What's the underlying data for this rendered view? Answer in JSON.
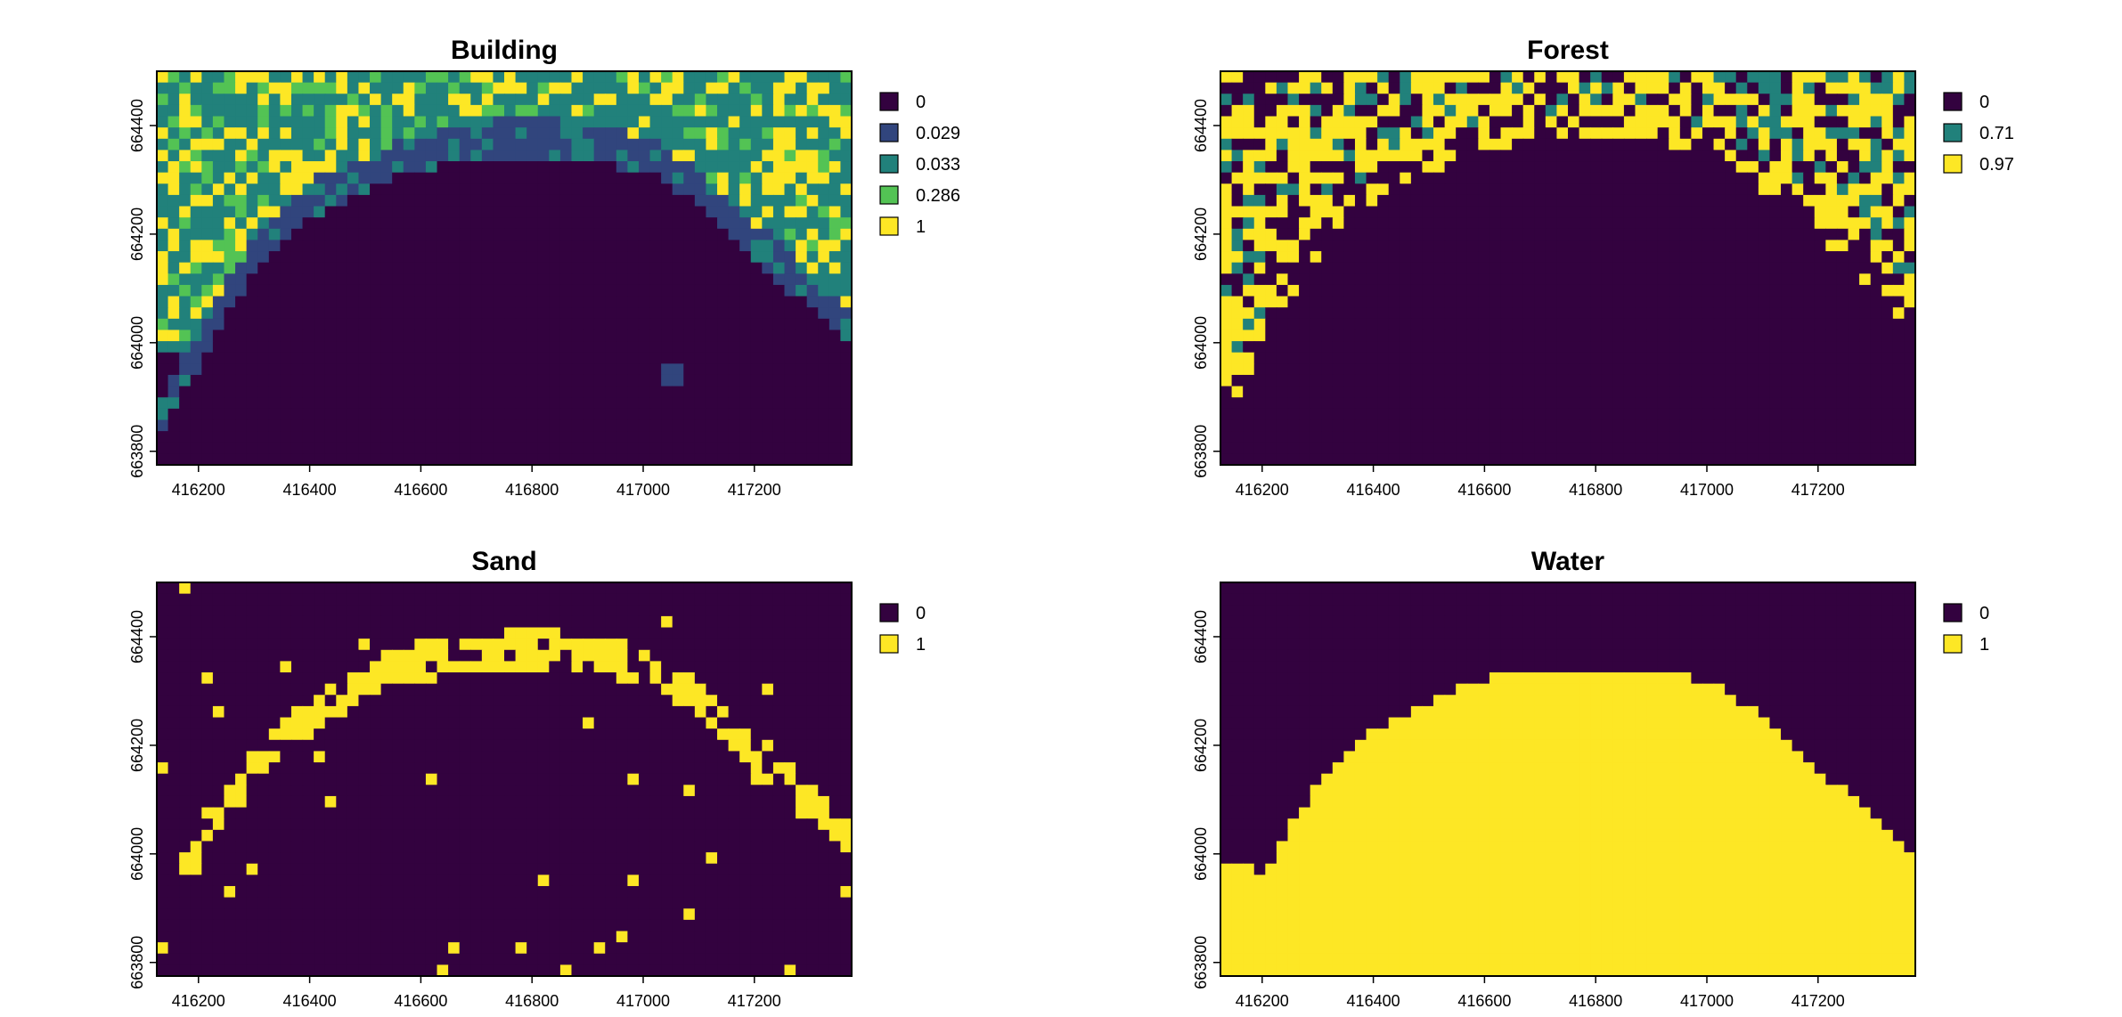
{
  "chart_data": [
    {
      "type": "heatmap",
      "title": "Building",
      "x_ticks": [
        416200,
        416400,
        416600,
        416800,
        417000,
        417200
      ],
      "y_ticks": [
        663800,
        664000,
        664200,
        664400
      ],
      "xlim": [
        416125,
        417375
      ],
      "ylim": [
        663775,
        664500
      ],
      "grid": false,
      "legend_position": "right",
      "legend": [
        {
          "value": "0",
          "color": "#33023f"
        },
        {
          "value": "0.029",
          "color": "#31457d"
        },
        {
          "value": "0.033",
          "color": "#21817b"
        },
        {
          "value": "0.286",
          "color": "#53c354"
        },
        {
          "value": "1",
          "color": "#fde725"
        }
      ]
    },
    {
      "type": "heatmap",
      "title": "Forest",
      "x_ticks": [
        416200,
        416400,
        416600,
        416800,
        417000,
        417200
      ],
      "y_ticks": [
        663800,
        664000,
        664200,
        664400
      ],
      "xlim": [
        416125,
        417375
      ],
      "ylim": [
        663775,
        664500
      ],
      "grid": false,
      "legend_position": "right",
      "legend": [
        {
          "value": "0",
          "color": "#33023f"
        },
        {
          "value": "0.71",
          "color": "#21817b"
        },
        {
          "value": "0.97",
          "color": "#fde725"
        }
      ]
    },
    {
      "type": "heatmap",
      "title": "Sand",
      "x_ticks": [
        416200,
        416400,
        416600,
        416800,
        417000,
        417200
      ],
      "y_ticks": [
        663800,
        664000,
        664200,
        664400
      ],
      "xlim": [
        416125,
        417375
      ],
      "ylim": [
        663775,
        664500
      ],
      "grid": false,
      "legend_position": "right",
      "legend": [
        {
          "value": "0",
          "color": "#33023f"
        },
        {
          "value": "1",
          "color": "#fde725"
        }
      ]
    },
    {
      "type": "heatmap",
      "title": "Water",
      "x_ticks": [
        416200,
        416400,
        416600,
        416800,
        417000,
        417200
      ],
      "y_ticks": [
        663800,
        664000,
        664200,
        664400
      ],
      "xlim": [
        416125,
        417375
      ],
      "ylim": [
        663775,
        664500
      ],
      "grid": false,
      "legend_position": "right",
      "legend": [
        {
          "value": "0",
          "color": "#33023f"
        },
        {
          "value": "1",
          "color": "#fde725"
        }
      ]
    }
  ]
}
